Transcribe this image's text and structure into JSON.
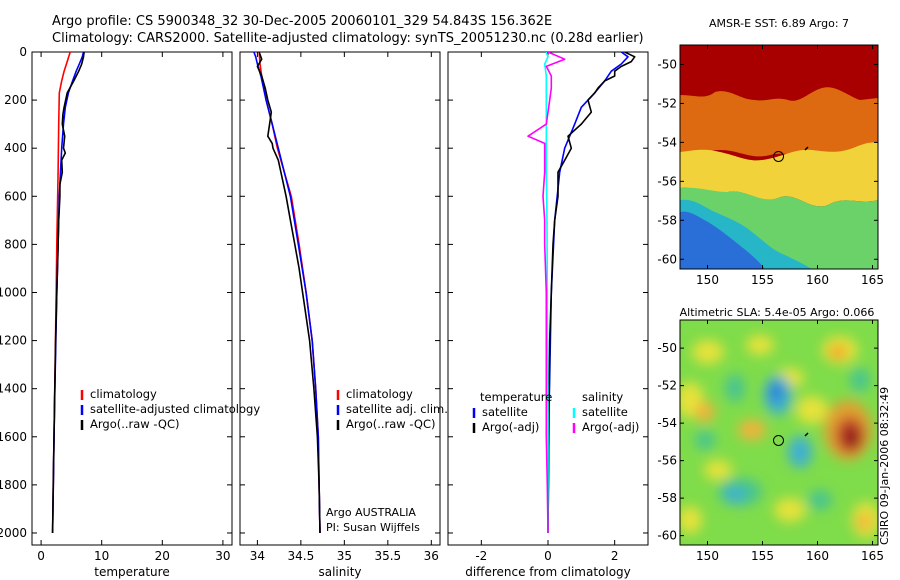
{
  "header": {
    "line1": "Argo profile: CS 5900348_32 30-Dec-2005 20060101_329 54.843S 156.362E",
    "line2": "Climatology: CARS2000. Satellite-adjusted climatology: synTS_20051230.nc (0.28d earlier)"
  },
  "colors": {
    "climatology": "#ff0000",
    "satellite": "#0000ff",
    "argo": "#000000",
    "satellite_diff": "#00ffff",
    "argo_adj": "#ff00ff"
  },
  "chart_data": [
    {
      "type": "line",
      "xlabel": "temperature",
      "ylabel": "",
      "xlim": [
        -1.5,
        31.5
      ],
      "ylim": [
        2050,
        0
      ],
      "xticks": [
        0,
        10,
        20,
        30
      ],
      "yticks": [
        0,
        200,
        400,
        600,
        800,
        1000,
        1200,
        1400,
        1600,
        1800,
        2000
      ],
      "legend": {
        "placement": "lower-right",
        "entries": [
          "climatology",
          "satellite-adjusted climatology",
          "Argo(..raw -QC)"
        ]
      },
      "series": [
        {
          "name": "climatology",
          "color": "#ff0000",
          "depth": [
            0,
            40,
            80,
            120,
            170,
            300,
            500,
            800,
            1000,
            1500,
            2000
          ],
          "values": [
            4.8,
            4.3,
            3.8,
            3.4,
            3.0,
            2.9,
            2.8,
            2.6,
            2.5,
            2.2,
            1.9
          ]
        },
        {
          "name": "satellite-adjusted climatology",
          "color": "#0000ff",
          "depth": [
            0,
            20,
            50,
            80,
            120,
            170,
            230,
            300,
            400,
            500,
            600,
            800,
            1000,
            1500,
            2000
          ],
          "values": [
            7.0,
            6.8,
            6.3,
            5.8,
            5.2,
            4.5,
            4.0,
            3.7,
            3.4,
            3.2,
            3.0,
            2.8,
            2.6,
            2.2,
            1.9
          ]
        },
        {
          "name": "Argo(..raw -QC)",
          "color": "#000000",
          "depth": [
            0,
            20,
            50,
            80,
            120,
            170,
            230,
            260,
            300,
            350,
            400,
            420,
            450,
            500,
            550,
            600,
            700,
            800,
            900,
            1000,
            1200,
            1500,
            1800,
            2000
          ],
          "values": [
            7.1,
            7.0,
            6.7,
            6.2,
            5.4,
            4.3,
            3.8,
            3.6,
            3.5,
            3.9,
            3.7,
            4.0,
            3.4,
            3.5,
            3.1,
            3.1,
            2.9,
            2.8,
            2.7,
            2.6,
            2.4,
            2.2,
            2.0,
            1.9
          ]
        }
      ]
    },
    {
      "type": "line",
      "xlabel": "salinity",
      "ylabel": "",
      "xlim": [
        33.8,
        36.1
      ],
      "ylim": [
        2050,
        0
      ],
      "xticks": [
        34,
        34.5,
        35,
        35.5,
        36
      ],
      "yticks": [
        0,
        200,
        400,
        600,
        800,
        1000,
        1200,
        1400,
        1600,
        1800,
        2000
      ],
      "legend": {
        "placement": "lower-right",
        "entries": [
          "climatology",
          "satellite adj. clim.",
          "Argo(..raw -QC)"
        ]
      },
      "annotation": {
        "line1": "Argo AUSTRALIA",
        "line2": "PI: Susan Wijffels"
      },
      "series": [
        {
          "name": "climatology",
          "color": "#ff0000",
          "depth": [
            0,
            50,
            100,
            200,
            300,
            400,
            500,
            600,
            800,
            1000,
            1200,
            1400,
            1600,
            1800,
            2000
          ],
          "values": [
            34.02,
            34.03,
            34.05,
            34.1,
            34.17,
            34.23,
            34.31,
            34.39,
            34.48,
            34.56,
            34.63,
            34.67,
            34.7,
            34.71,
            34.72
          ]
        },
        {
          "name": "satellite adj. clim.",
          "color": "#0000ff",
          "depth": [
            0,
            20,
            50,
            100,
            200,
            300,
            400,
            500,
            600,
            800,
            1000,
            1200,
            1400,
            1600,
            1800,
            2000
          ],
          "values": [
            33.96,
            33.98,
            34.0,
            34.04,
            34.1,
            34.17,
            34.24,
            34.31,
            34.38,
            34.47,
            34.56,
            34.63,
            34.67,
            34.7,
            34.71,
            34.72
          ]
        },
        {
          "name": "Argo(..raw -QC)",
          "color": "#000000",
          "depth": [
            0,
            30,
            60,
            100,
            150,
            200,
            250,
            300,
            350,
            380,
            400,
            450,
            500,
            600,
            700,
            800,
            900,
            1000,
            1200,
            1400,
            1600,
            1800,
            2000
          ],
          "values": [
            34.02,
            34.05,
            34.0,
            34.05,
            34.09,
            34.12,
            34.16,
            34.14,
            34.12,
            34.17,
            34.18,
            34.24,
            34.27,
            34.33,
            34.38,
            34.43,
            34.48,
            34.52,
            34.6,
            34.65,
            34.69,
            34.71,
            34.72
          ]
        }
      ]
    },
    {
      "type": "line",
      "xlabel": "difference from climatology",
      "ylabel": "",
      "xlim": [
        -3,
        3
      ],
      "ylim": [
        2050,
        0
      ],
      "xticks": [
        -2,
        0,
        2
      ],
      "yticks": [
        0,
        200,
        400,
        600,
        800,
        1000,
        1200,
        1400,
        1600,
        1800,
        2000
      ],
      "legend": {
        "placement": "lower-center",
        "col1_title": "temperature",
        "col2_title": "salinity",
        "entries": [
          "satellite",
          "Argo(-adj)",
          "satellite",
          "Argo(-adj)"
        ]
      },
      "series": [
        {
          "name": "temperature satellite",
          "color": "#0000ff",
          "depth": [
            0,
            20,
            50,
            80,
            120,
            170,
            230,
            300,
            400,
            500,
            700,
            1000,
            1500,
            2000
          ],
          "values": [
            2.2,
            2.4,
            2.2,
            1.9,
            1.7,
            1.4,
            1.0,
            0.8,
            0.5,
            0.35,
            0.2,
            0.1,
            0.03,
            0.0
          ]
        },
        {
          "name": "temperature Argo(-adj)",
          "color": "#000000",
          "depth": [
            0,
            20,
            40,
            60,
            80,
            100,
            120,
            150,
            170,
            200,
            250,
            300,
            350,
            400,
            450,
            500,
            600,
            700,
            800,
            1000,
            1200,
            1500,
            2000
          ],
          "values": [
            2.3,
            2.6,
            2.5,
            2.2,
            2.0,
            2.0,
            1.7,
            1.5,
            1.4,
            1.2,
            1.3,
            1.0,
            0.6,
            0.7,
            0.5,
            0.3,
            0.3,
            0.2,
            0.15,
            0.1,
            0.05,
            0.03,
            0.0
          ]
        },
        {
          "name": "salinity satellite",
          "color": "#00ffff",
          "depth": [
            0,
            20,
            50,
            100,
            200,
            300,
            400,
            500,
            700,
            1000,
            1500,
            2000
          ],
          "values": [
            -0.05,
            0.0,
            -0.1,
            -0.05,
            -0.05,
            -0.05,
            -0.05,
            -0.05,
            -0.03,
            -0.02,
            0.0,
            0.0
          ]
        },
        {
          "name": "salinity Argo(-adj)",
          "color": "#ff00ff",
          "depth": [
            0,
            30,
            60,
            100,
            150,
            200,
            250,
            300,
            350,
            380,
            400,
            450,
            500,
            600,
            700,
            800,
            1000,
            1200,
            1400,
            1600,
            1800,
            2000
          ],
          "values": [
            0.0,
            0.5,
            -0.05,
            0.1,
            0.1,
            0.05,
            0.0,
            -0.05,
            -0.6,
            -0.1,
            -0.1,
            -0.1,
            -0.1,
            -0.15,
            -0.1,
            -0.1,
            -0.05,
            -0.05,
            -0.05,
            -0.05,
            -0.02,
            0.0
          ]
        }
      ]
    },
    {
      "type": "heatmap",
      "title": "AMSR-E SST: 6.89 Argo: 7",
      "xlim": [
        147.5,
        165.5
      ],
      "ylim": [
        -60.5,
        -49
      ],
      "xticks": [
        150,
        155,
        160,
        165
      ],
      "yticks": [
        -50,
        -52,
        -54,
        -56,
        -58,
        -60
      ],
      "float_position": {
        "lon": 156.362,
        "lat": -54.843
      }
    },
    {
      "type": "heatmap",
      "title": "Altimetric SLA: 5.4e-05 Argo: 0.066",
      "xlim": [
        147.5,
        165.5
      ],
      "ylim": [
        -60.5,
        -48.5
      ],
      "xticks": [
        150,
        155,
        160,
        165
      ],
      "yticks": [
        -50,
        -52,
        -54,
        -56,
        -58,
        -60
      ],
      "float_position": {
        "lon": 156.362,
        "lat": -54.843
      }
    }
  ],
  "credit": "CSIRO 09-Jan-2006 08:32:49"
}
